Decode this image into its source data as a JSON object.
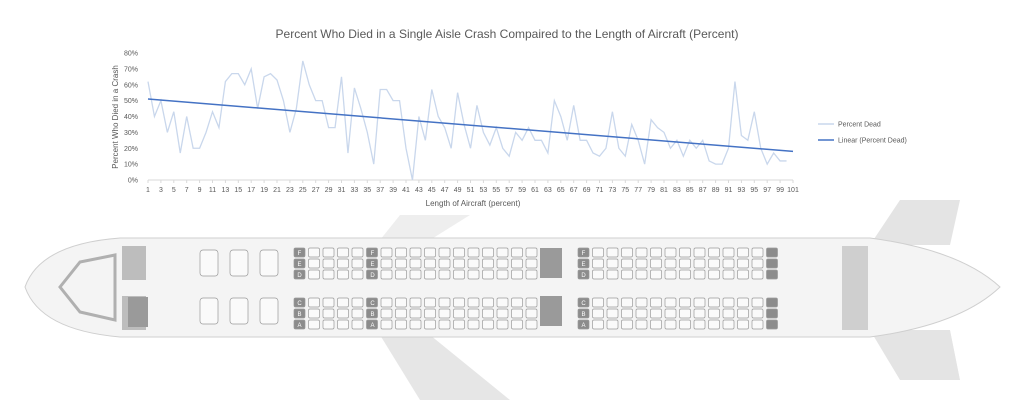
{
  "chart_data": {
    "type": "line",
    "title": "Percent Who Died in a Single Aisle Crash Compaired to the Length of Aircraft (Percent)",
    "y_label": "Percent Who Died in a Crash",
    "x_label": "Length of Aircraft (percent)",
    "xlim": [
      1,
      101
    ],
    "xticks": [
      1,
      3,
      5,
      7,
      9,
      11,
      13,
      15,
      17,
      19,
      21,
      23,
      25,
      27,
      29,
      31,
      33,
      35,
      37,
      39,
      41,
      43,
      45,
      47,
      49,
      51,
      53,
      55,
      57,
      59,
      61,
      63,
      65,
      67,
      69,
      71,
      73,
      75,
      77,
      79,
      81,
      83,
      85,
      87,
      89,
      91,
      93,
      95,
      97,
      99,
      101
    ],
    "ylim": [
      0,
      80
    ],
    "yticks": [
      {
        "value": 0,
        "label": "0%"
      },
      {
        "value": 10,
        "label": "10%"
      },
      {
        "value": 20,
        "label": "20%"
      },
      {
        "value": 30,
        "label": "30%"
      },
      {
        "value": 40,
        "label": "40%"
      },
      {
        "value": 50,
        "label": "50%"
      },
      {
        "value": 60,
        "label": "60%"
      },
      {
        "value": 70,
        "label": "70%"
      },
      {
        "value": 80,
        "label": "80%"
      }
    ],
    "legend": "right",
    "series": [
      {
        "name": "Percent Dead",
        "color": "#c9d7ec",
        "x": [
          1,
          2,
          3,
          4,
          5,
          6,
          7,
          8,
          9,
          10,
          11,
          12,
          13,
          14,
          15,
          16,
          17,
          18,
          19,
          20,
          21,
          22,
          23,
          24,
          25,
          26,
          27,
          28,
          29,
          30,
          31,
          32,
          33,
          34,
          35,
          36,
          37,
          38,
          39,
          40,
          41,
          42,
          43,
          44,
          45,
          46,
          47,
          48,
          49,
          50,
          51,
          52,
          53,
          54,
          55,
          56,
          57,
          58,
          59,
          60,
          61,
          62,
          63,
          64,
          65,
          66,
          67,
          68,
          69,
          70,
          71,
          72,
          73,
          74,
          75,
          76,
          77,
          78,
          79,
          80,
          81,
          82,
          83,
          84,
          85,
          86,
          87,
          88,
          89,
          90,
          91,
          92,
          93,
          94,
          95,
          96,
          97,
          98,
          99,
          100
        ],
        "values": [
          62,
          40,
          50,
          30,
          43,
          17,
          40,
          20,
          20,
          30,
          43,
          33,
          62,
          67,
          67,
          60,
          70,
          45,
          65,
          67,
          63,
          50,
          30,
          45,
          75,
          60,
          50,
          50,
          33,
          33,
          65,
          17,
          58,
          45,
          30,
          10,
          57,
          57,
          50,
          50,
          20,
          0,
          40,
          25,
          57,
          40,
          33,
          20,
          55,
          35,
          20,
          47,
          30,
          22,
          33,
          20,
          15,
          30,
          25,
          33,
          25,
          25,
          17,
          50,
          40,
          25,
          47,
          25,
          25,
          17,
          15,
          20,
          43,
          20,
          15,
          35,
          25,
          10,
          38,
          33,
          30,
          20,
          25,
          15,
          25,
          20,
          25,
          12,
          10,
          10,
          20,
          62,
          28,
          25,
          43,
          20,
          10,
          17,
          12,
          12
        ]
      },
      {
        "name": "Linear (Percent Dead)",
        "color": "#4472c4",
        "x": [
          1,
          101
        ],
        "values": [
          51,
          18
        ]
      }
    ]
  },
  "seat_map": {
    "left_letters": [
      "A",
      "B",
      "C"
    ],
    "right_letters": [
      "D",
      "E",
      "F"
    ]
  }
}
